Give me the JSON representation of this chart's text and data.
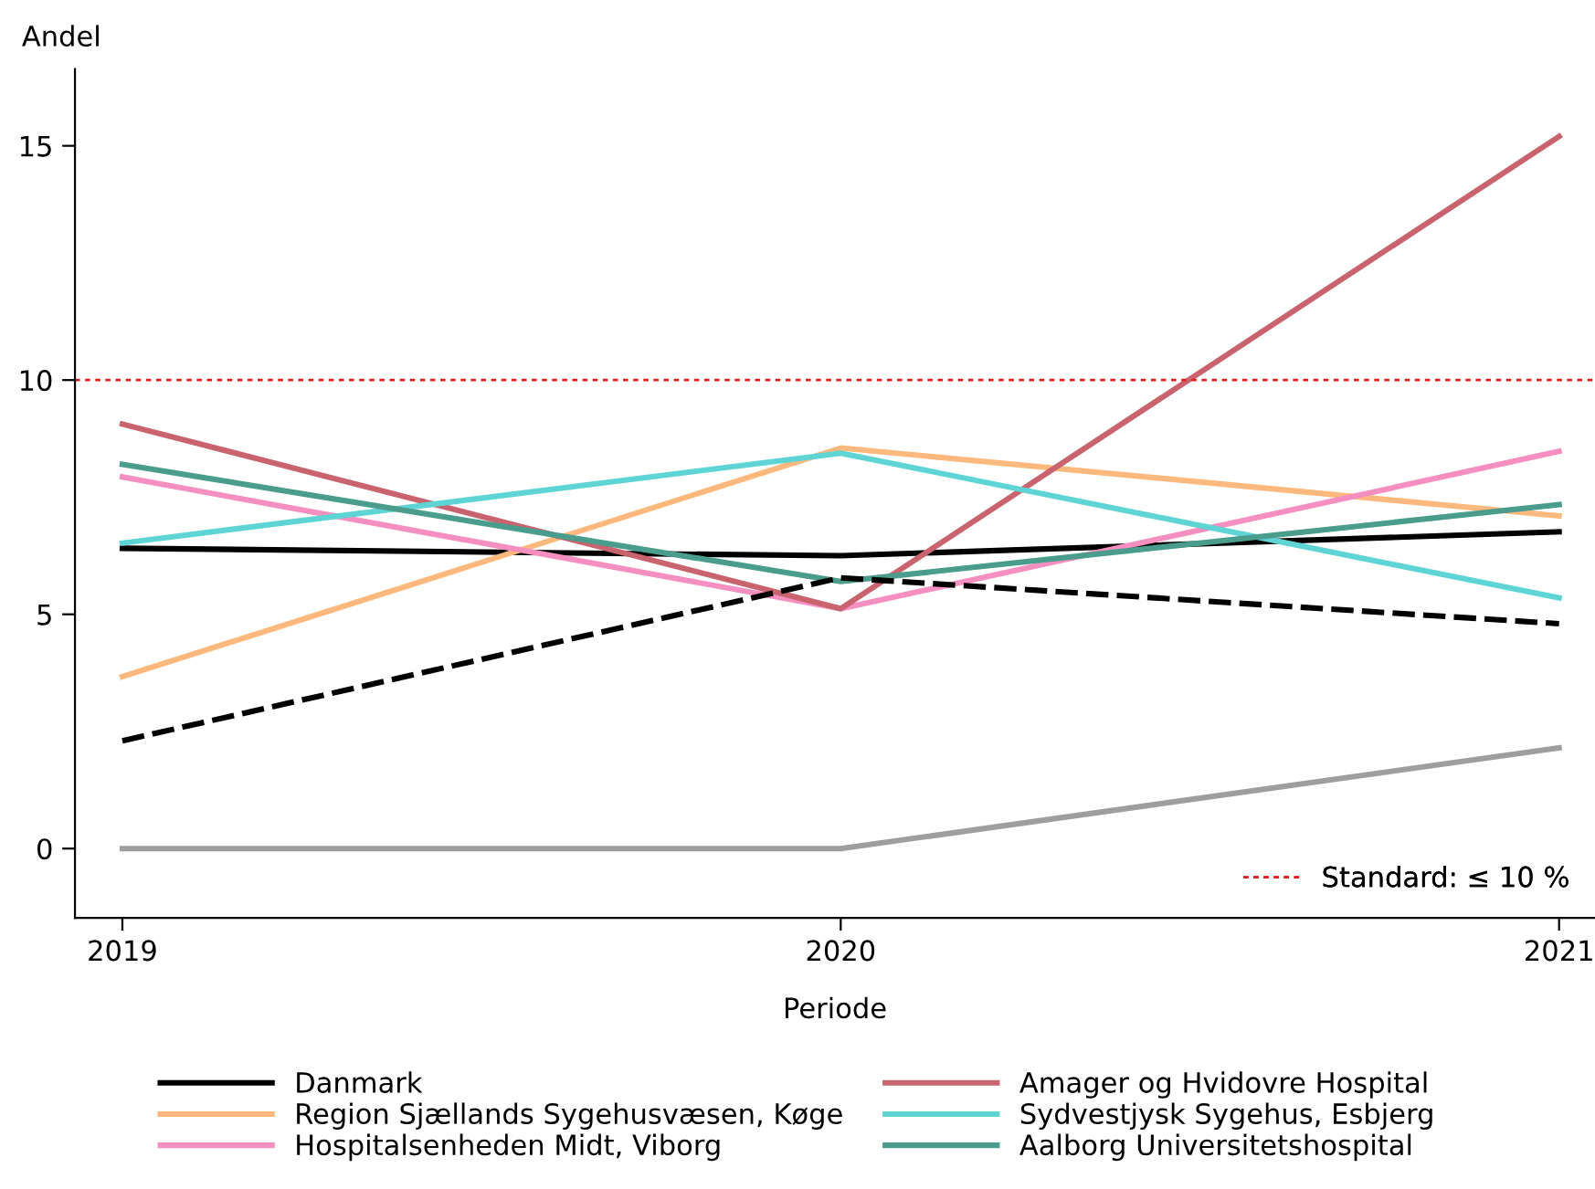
{
  "chart_data": {
    "type": "line",
    "xlabel": "Periode",
    "ylabel": "Andel",
    "x": [
      2019,
      2020,
      2021
    ],
    "xlim": [
      2018.934,
      2021.05
    ],
    "xticks": [
      2019,
      2020,
      2021
    ],
    "ylim": [
      -1.48,
      16.64
    ],
    "yticks": [
      0,
      5,
      10,
      15
    ],
    "grid": false,
    "legend": "bottom",
    "marker": "none",
    "ref_lines": [
      {
        "axis": "y",
        "value": 10,
        "label": "Standard: ≤ 10 %",
        "color": "#e02020",
        "line_style": "dotted"
      }
    ],
    "series": [
      {
        "name": "Danmark",
        "color": "#000000",
        "values": [
          6.41,
          6.25,
          6.76
        ]
      },
      {
        "name": "Region Sjællands Sygehusvæsen, Køge",
        "color": "#fdb97d",
        "values": [
          3.67,
          8.55,
          7.1
        ]
      },
      {
        "name": "Hospitalsenheden Midt, Viborg",
        "color": "#f48fbf",
        "values": [
          7.93,
          5.12,
          8.48
        ]
      },
      {
        "color": "#9e9e9e",
        "values": [
          0,
          0,
          2.15
        ]
      },
      {
        "name": "Amager og Hvidovre Hospital",
        "color": "#c9636e",
        "values": [
          9.06,
          5.12,
          15.2
        ]
      },
      {
        "name": "Sydvestjysk Sygehus, Esbjerg",
        "color": "#5fd4d4",
        "values": [
          6.52,
          8.44,
          5.35
        ]
      },
      {
        "name": "Aalborg Universitetshospital",
        "color": "#4a9d8c",
        "values": [
          8.2,
          5.7,
          7.34
        ]
      },
      {
        "color": "#000000",
        "line_style": "dashed",
        "values": [
          2.3,
          5.78,
          4.8
        ]
      }
    ]
  }
}
